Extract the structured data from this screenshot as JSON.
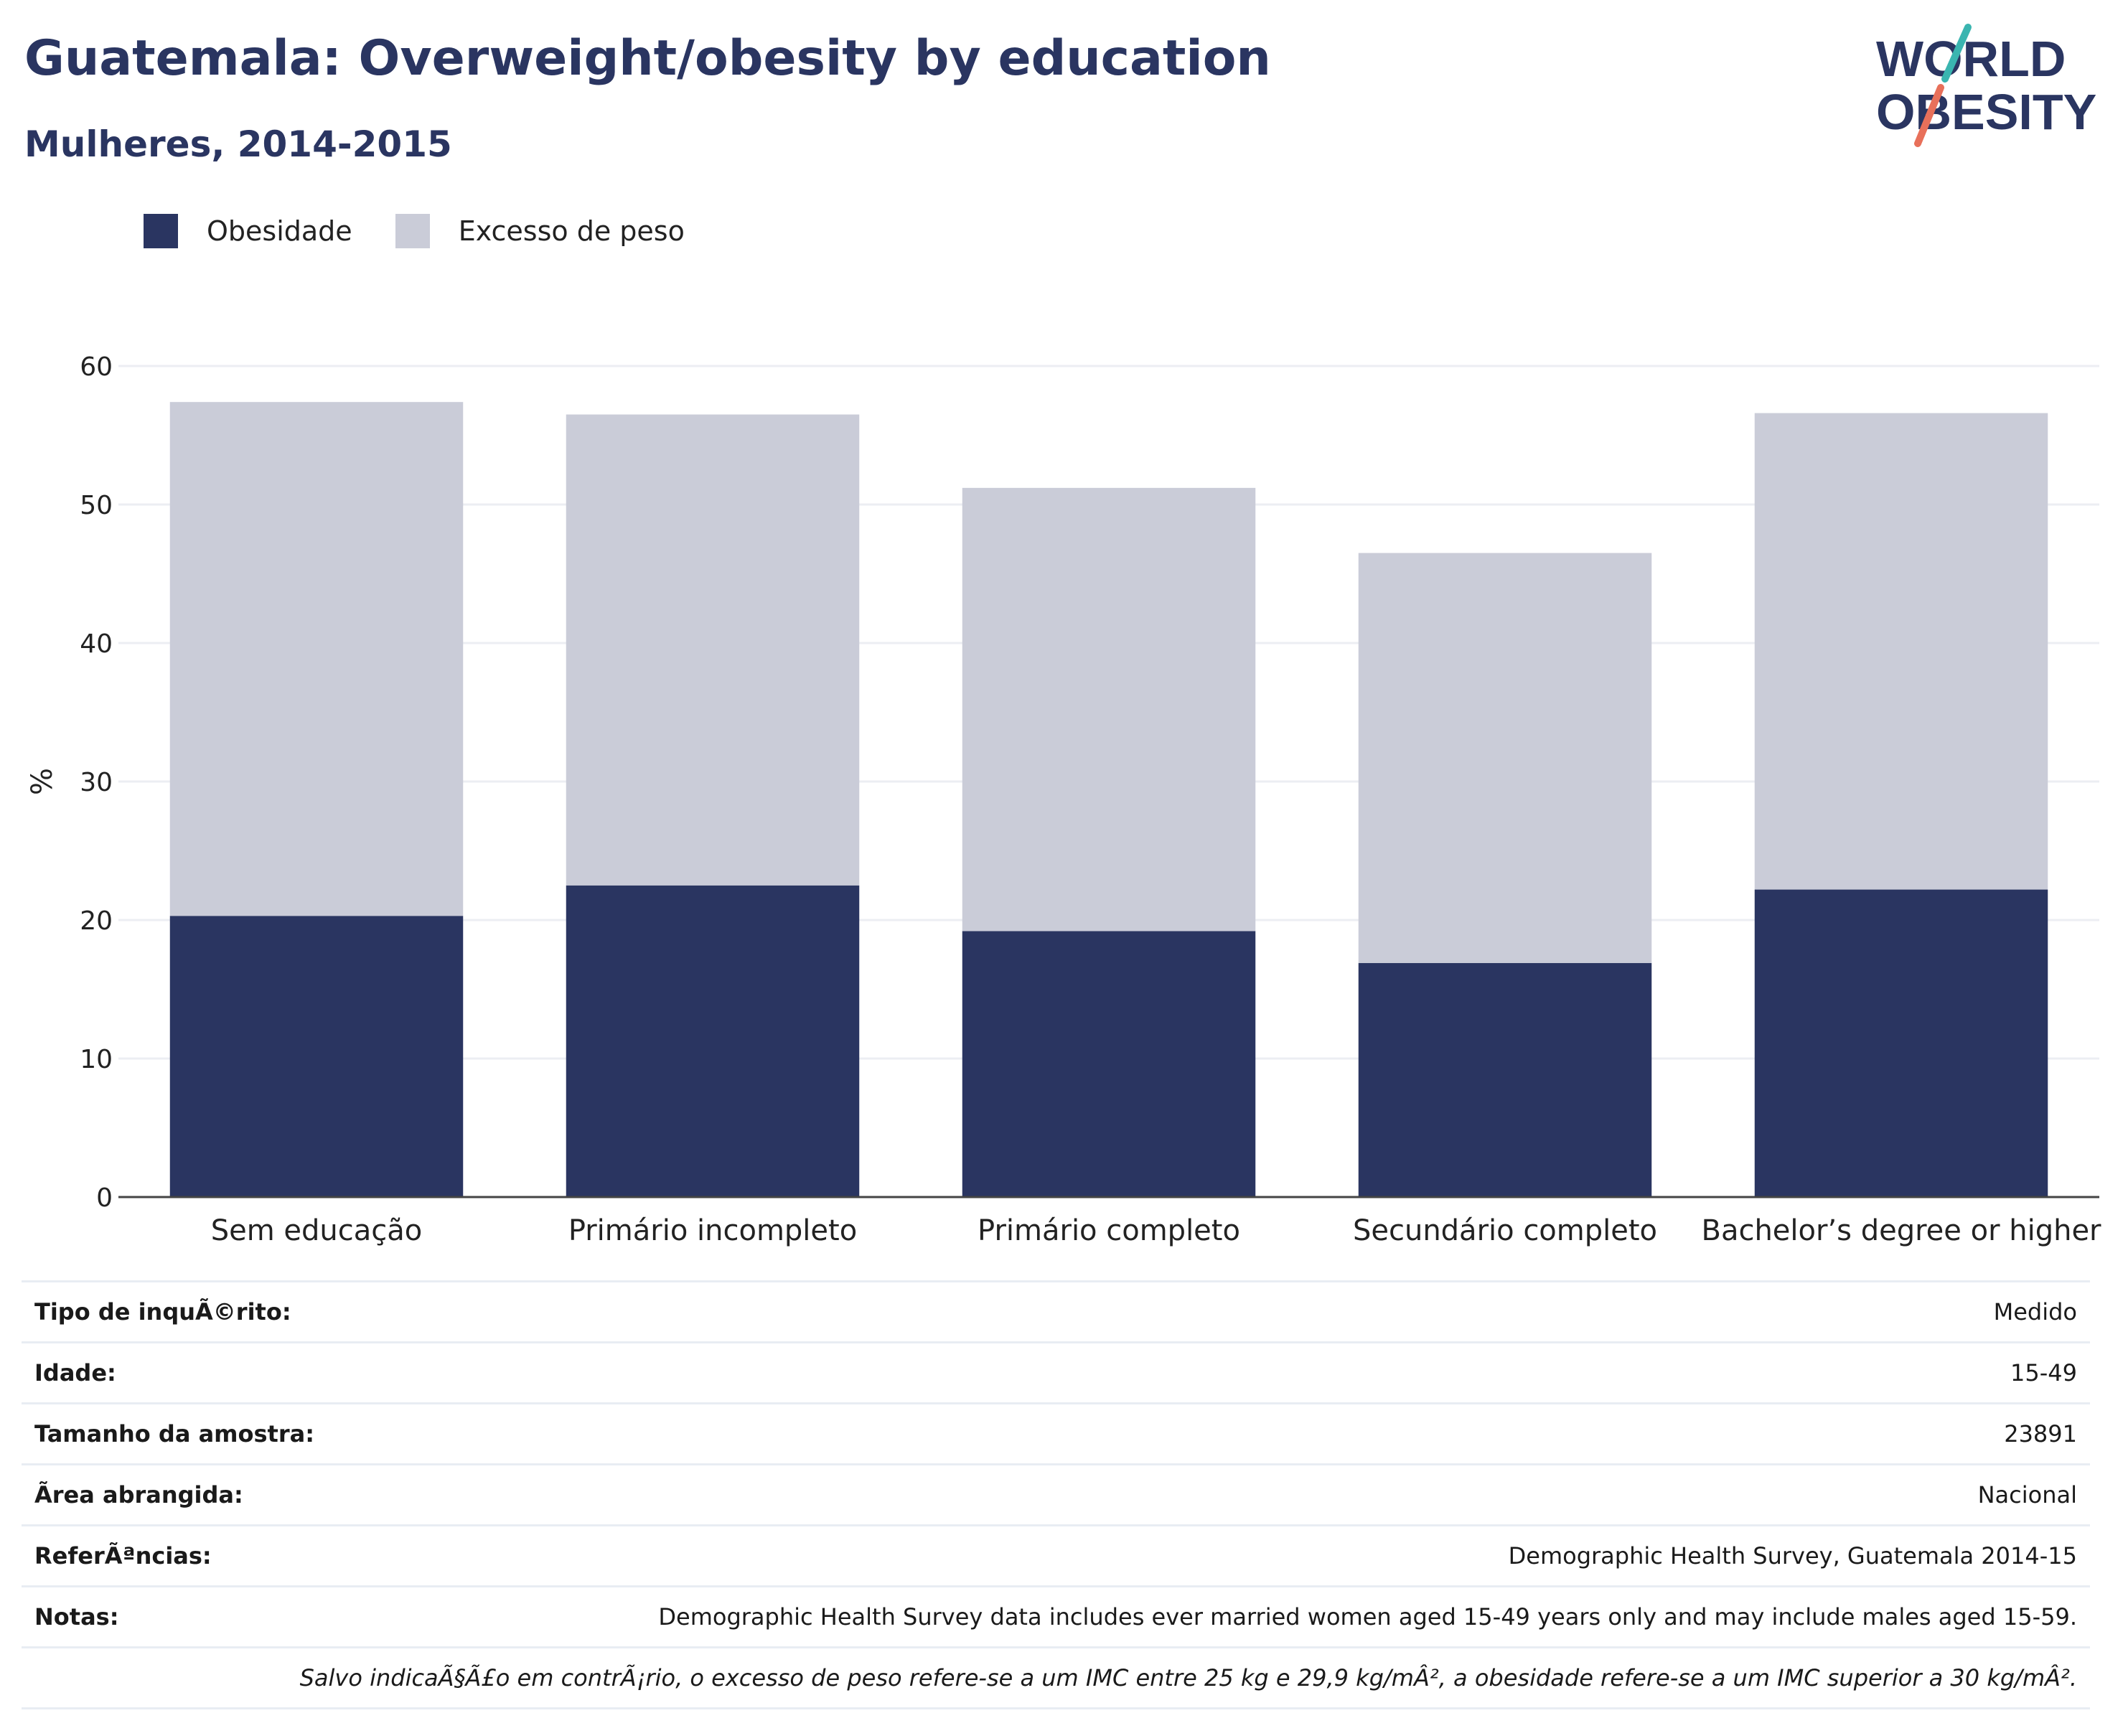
{
  "title": "Guatemala: Overweight/obesity by education",
  "subtitle": "Mulheres, 2014-2015",
  "logo": {
    "line1": "WORLD",
    "line2": "OBESITY"
  },
  "colors": {
    "obesity": "#2a3561",
    "overweight": "#caccd8",
    "brand_teal": "#3ab5b0",
    "brand_coral": "#e8705a"
  },
  "legend": [
    {
      "label": "Obesidade",
      "color": "#2a3561"
    },
    {
      "label": "Excesso de peso",
      "color": "#caccd8"
    }
  ],
  "chart_data": {
    "type": "bar",
    "stacked": true,
    "categories": [
      "Sem educação",
      "Primário incompleto",
      "Primário completo",
      "Secundário completo",
      "Bachelor’s degree or higher"
    ],
    "series": [
      {
        "name": "Obesidade",
        "values": [
          20.3,
          22.5,
          19.2,
          16.9,
          22.2
        ]
      },
      {
        "name": "Excesso de peso",
        "values": [
          37.1,
          34.0,
          32.0,
          29.6,
          34.4
        ]
      }
    ],
    "totals": [
      57.4,
      56.5,
      51.2,
      46.5,
      56.6
    ],
    "ylabel": "%",
    "ylim": [
      0,
      60
    ],
    "yticks": [
      0,
      10,
      20,
      30,
      40,
      50,
      60
    ],
    "grid": true,
    "legend_position": "top-left"
  },
  "info": [
    {
      "key": "Tipo de inquÃ©rito:",
      "value": "Medido"
    },
    {
      "key": "Idade:",
      "value": "15-49"
    },
    {
      "key": "Tamanho da amostra:",
      "value": "23891"
    },
    {
      "key": "Ã\u001frea abrangida:",
      "value": "Nacional"
    },
    {
      "key": "ReferÃªncias:",
      "value": "Demographic Health Survey, Guatemala 2014-15"
    },
    {
      "key": "Notas:",
      "value": "Demographic Health Survey data includes ever married women aged 15-49 years only and may include males aged 15-59."
    },
    {
      "key": "",
      "value": "Salvo indicaÃ§Ã£o em contrÃ¡rio, o excesso de peso refere-se a um IMC entre 25 kg e 29,9 kg/mÂ², a obesidade refere-se a um IMC superior a 30 kg/mÂ²."
    }
  ]
}
